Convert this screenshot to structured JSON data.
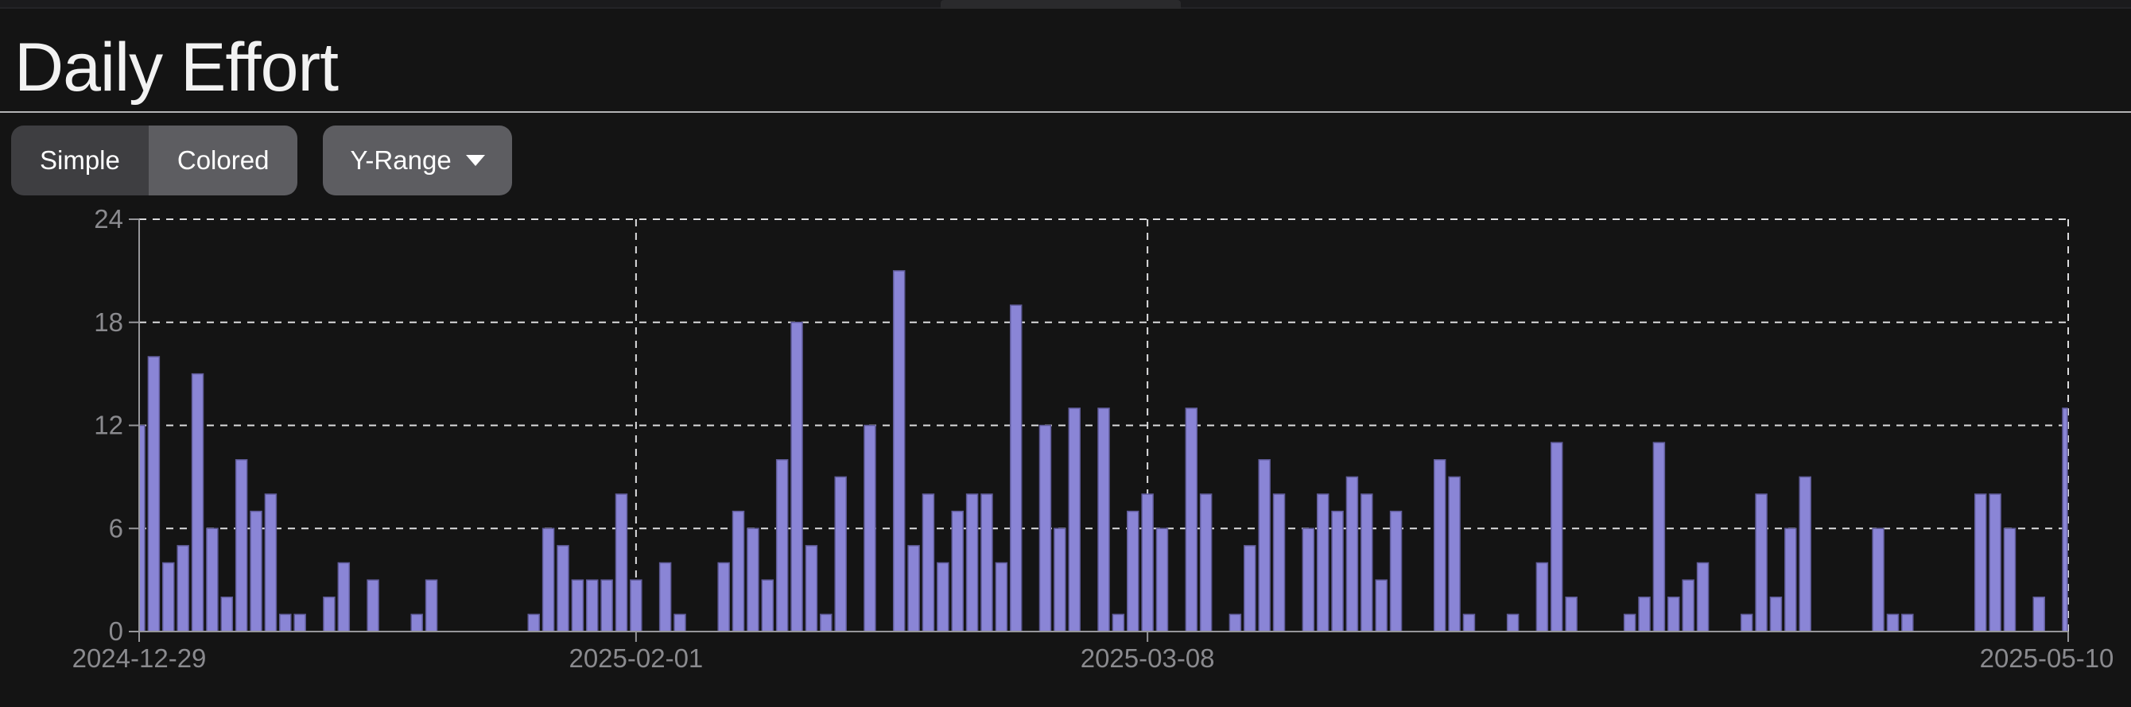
{
  "page": {
    "title": "Daily Effort"
  },
  "controls": {
    "view_mode": {
      "options": [
        {
          "label": "Simple",
          "active": false
        },
        {
          "label": "Colored",
          "active": true
        }
      ]
    },
    "y_range": {
      "label": "Y-Range",
      "caret_icon": "caret-down"
    }
  },
  "colors": {
    "background": "#141414",
    "bar_fill": "#8a85d6",
    "bar_stroke": "#5f5b99",
    "gridline": "#dcdcde",
    "axis": "#96969a",
    "tick_text": "#8a8a8e",
    "title_text": "#f2f2f2",
    "button_inactive": "#3e3e41",
    "button_active": "#5d5d61"
  },
  "chart_data": {
    "type": "bar",
    "title": "Daily Effort",
    "xlabel": "",
    "ylabel": "",
    "x_unit": "day",
    "x_start_date": "2024-12-29",
    "x_end_date": "2025-05-10",
    "x_ticks": [
      {
        "label": "2024-12-29",
        "day_index": 0
      },
      {
        "label": "2025-02-01",
        "day_index": 34
      },
      {
        "label": "2025-03-08",
        "day_index": 69
      },
      {
        "label": "2025-05-10",
        "day_index": 132
      }
    ],
    "y_ticks": [
      0,
      6,
      12,
      18,
      24
    ],
    "ylim": [
      0,
      24
    ],
    "grid": "dashed horizontal lines at y ticks, dashed vertical lines at month ticks and right frame",
    "legend": "none",
    "values": [
      12,
      16,
      4,
      5,
      15,
      6,
      2,
      10,
      7,
      8,
      1,
      1,
      0,
      2,
      4,
      0,
      3,
      0,
      0,
      1,
      3,
      0,
      0,
      0,
      0,
      0,
      0,
      1,
      6,
      5,
      3,
      3,
      3,
      8,
      3,
      0,
      4,
      1,
      0,
      0,
      4,
      7,
      6,
      3,
      10,
      18,
      5,
      1,
      9,
      0,
      12,
      0,
      21,
      5,
      8,
      4,
      7,
      8,
      8,
      4,
      19,
      0,
      12,
      6,
      13,
      0,
      13,
      1,
      7,
      8,
      6,
      0,
      13,
      8,
      0,
      1,
      5,
      10,
      8,
      0,
      6,
      8,
      7,
      9,
      8,
      3,
      7,
      0,
      0,
      10,
      9,
      1,
      0,
      0,
      1,
      0,
      4,
      11,
      2,
      0,
      0,
      0,
      1,
      2,
      11,
      2,
      3,
      4,
      0,
      0,
      1,
      8,
      2,
      6,
      9,
      0,
      0,
      0,
      0,
      6,
      1,
      1,
      0,
      0,
      0,
      0,
      8,
      8,
      6,
      0,
      2,
      0,
      13
    ]
  }
}
